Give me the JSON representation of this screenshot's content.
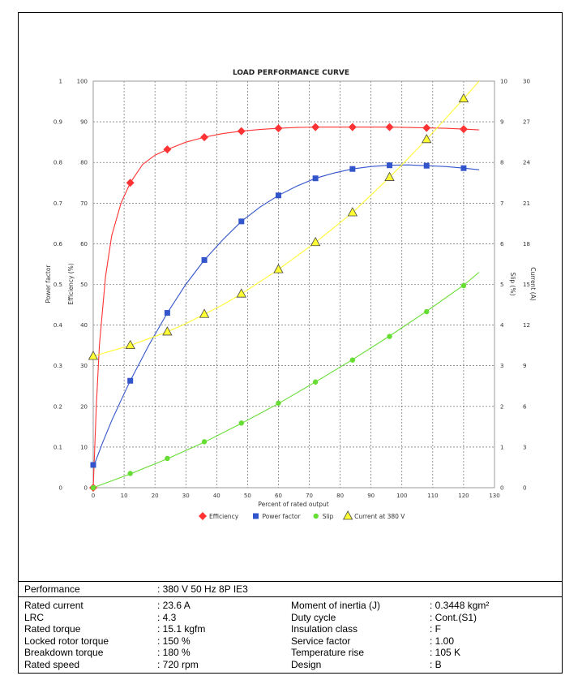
{
  "chart_data": {
    "type": "line",
    "title": "LOAD PERFORMANCE CURVE",
    "xlabel": "Percent of rated output",
    "xlim": [
      0,
      130
    ],
    "x_ticks": [
      "0",
      "10",
      "20",
      "30",
      "40",
      "50",
      "60",
      "70",
      "80",
      "90",
      "100",
      "110",
      "120",
      "130"
    ],
    "axes": {
      "power_factor": {
        "label": "Power factor",
        "range": [
          0,
          1
        ],
        "ticks": [
          "0",
          "0.1",
          "0.2",
          "0.3",
          "0.4",
          "0.5",
          "0.6",
          "0.7",
          "0.8",
          "0.9",
          "1"
        ]
      },
      "efficiency": {
        "label": "Efficiency (%)",
        "range": [
          0,
          100
        ],
        "ticks": [
          "0",
          "10",
          "20",
          "30",
          "40",
          "50",
          "60",
          "70",
          "80",
          "90",
          "100"
        ]
      },
      "slip": {
        "label": "Slip (%)",
        "range": [
          0,
          10
        ],
        "ticks": [
          "0",
          "1",
          "2",
          "3",
          "4",
          "5",
          "6",
          "7",
          "8",
          "9",
          "10"
        ]
      },
      "current": {
        "label": "Current (A)",
        "range": [
          0,
          30
        ],
        "ticks": [
          "0",
          "3",
          "6",
          "9",
          "12",
          "15",
          "18",
          "21",
          "24",
          "27",
          "30"
        ]
      }
    },
    "grid": true,
    "legend_position": "bottom",
    "series": [
      {
        "name": "Efficiency",
        "axis": "efficiency",
        "color": "#ff3333",
        "marker": "diamond",
        "x": [
          0,
          12,
          24,
          36,
          48,
          60,
          72,
          84,
          96,
          108,
          120
        ],
        "values": [
          0,
          75,
          83.2,
          86.2,
          87.7,
          88.4,
          88.7,
          88.7,
          88.7,
          88.5,
          88.2
        ],
        "curve_x": [
          0,
          1,
          2,
          4,
          6,
          9,
          12,
          16,
          20,
          24,
          30,
          36,
          42,
          48,
          54,
          60,
          66,
          72,
          78,
          84,
          90,
          96,
          102,
          108,
          114,
          120,
          125
        ],
        "curve_y": [
          0,
          20,
          35,
          52,
          62,
          70,
          75,
          79.5,
          81.8,
          83.2,
          85,
          86.2,
          87.1,
          87.7,
          88.1,
          88.4,
          88.6,
          88.7,
          88.7,
          88.7,
          88.7,
          88.7,
          88.6,
          88.5,
          88.4,
          88.2,
          88
        ]
      },
      {
        "name": "Power factor",
        "axis": "power_factor",
        "color": "#3355cc",
        "marker": "square",
        "x": [
          0,
          12,
          24,
          36,
          48,
          60,
          72,
          84,
          96,
          108,
          120
        ],
        "values": [
          0.056,
          0.263,
          0.43,
          0.56,
          0.655,
          0.719,
          0.761,
          0.784,
          0.793,
          0.792,
          0.786
        ],
        "curve_x": [
          0,
          3,
          6,
          9,
          12,
          18,
          24,
          30,
          36,
          42,
          48,
          54,
          60,
          66,
          72,
          78,
          84,
          90,
          96,
          102,
          108,
          114,
          120,
          125
        ],
        "curve_y": [
          0.05,
          0.11,
          0.165,
          0.215,
          0.263,
          0.35,
          0.43,
          0.5,
          0.56,
          0.61,
          0.655,
          0.69,
          0.719,
          0.742,
          0.761,
          0.774,
          0.784,
          0.79,
          0.793,
          0.794,
          0.792,
          0.79,
          0.786,
          0.782
        ]
      },
      {
        "name": "Slip",
        "axis": "slip",
        "color": "#66dd33",
        "marker": "circle",
        "x": [
          0,
          12,
          24,
          36,
          48,
          60,
          72,
          84,
          96,
          108,
          120
        ],
        "values": [
          0,
          0.35,
          0.72,
          1.13,
          1.59,
          2.08,
          2.6,
          3.14,
          3.72,
          4.33,
          4.97
        ],
        "curve_x": [
          0,
          12,
          24,
          36,
          48,
          60,
          72,
          84,
          96,
          108,
          120,
          125
        ],
        "curve_y": [
          0,
          0.34,
          0.71,
          1.12,
          1.58,
          2.07,
          2.6,
          3.15,
          3.73,
          4.34,
          4.98,
          5.3
        ]
      },
      {
        "name": "Current at 380 V",
        "axis": "current",
        "color": "#ffff33",
        "marker": "triangle",
        "x": [
          0,
          12,
          24,
          36,
          48,
          60,
          72,
          84,
          96,
          108,
          120
        ],
        "values": [
          9.7,
          10.5,
          11.5,
          12.8,
          14.3,
          16.1,
          18.1,
          20.3,
          22.9,
          25.7,
          28.7
        ],
        "curve_x": [
          0,
          6,
          12,
          18,
          24,
          30,
          36,
          42,
          48,
          54,
          60,
          66,
          72,
          78,
          84,
          90,
          96,
          102,
          108,
          114,
          120,
          125
        ],
        "curve_y": [
          9.7,
          10.1,
          10.5,
          11.0,
          11.5,
          12.1,
          12.8,
          13.5,
          14.3,
          15.2,
          16.1,
          17.1,
          18.1,
          19.2,
          20.3,
          21.6,
          22.9,
          24.3,
          25.7,
          27.2,
          28.7,
          30
        ]
      }
    ]
  },
  "specs": {
    "performance": {
      "label": "Performance",
      "value": ": 380 V 50 Hz 8P IE3"
    },
    "left": [
      {
        "label": "Rated current",
        "value": ": 23.6 A"
      },
      {
        "label": "LRC",
        "value": ": 4.3"
      },
      {
        "label": "Rated torque",
        "value": ": 15.1 kgfm"
      },
      {
        "label": "Locked rotor torque",
        "value": ": 150 %"
      },
      {
        "label": "Breakdown torque",
        "value": ": 180 %"
      },
      {
        "label": "Rated speed",
        "value": ": 720 rpm"
      }
    ],
    "right": [
      {
        "label": "Moment of inertia (J)",
        "value": ": 0.3448 kgm²"
      },
      {
        "label": "Duty cycle",
        "value": ": Cont.(S1)"
      },
      {
        "label": "Insulation class",
        "value": ": F"
      },
      {
        "label": "Service factor",
        "value": ": 1.00"
      },
      {
        "label": "Temperature rise",
        "value": ": 105 K"
      },
      {
        "label": "Design",
        "value": ": B"
      }
    ]
  }
}
